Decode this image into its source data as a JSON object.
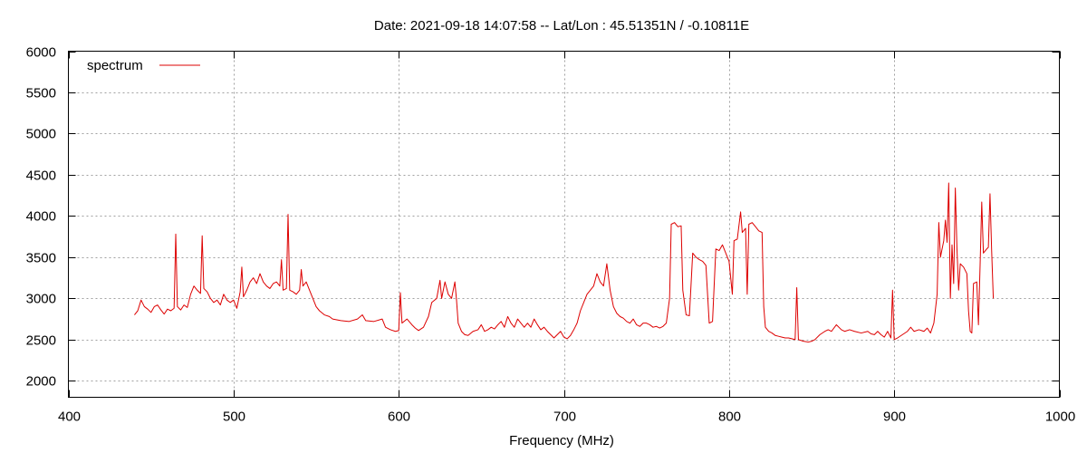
{
  "chart_data": {
    "type": "line",
    "title": "Date: 2021-09-18 14:07:58  --  Lat/Lon : 45.51351N / -0.10811E",
    "xlabel": "Frequency (MHz)",
    "ylabel": "",
    "xlim": [
      400,
      1000
    ],
    "ylim": [
      1800,
      6000
    ],
    "xticks": [
      400,
      500,
      600,
      700,
      800,
      900,
      1000
    ],
    "yticks": [
      2000,
      2500,
      3000,
      3500,
      4000,
      4500,
      5000,
      5500,
      6000
    ],
    "grid": true,
    "legend_position": "top-left",
    "colors": {
      "series": "#dd0000"
    },
    "series": [
      {
        "name": "spectrum",
        "points": [
          [
            440,
            2800
          ],
          [
            442,
            2850
          ],
          [
            444,
            2980
          ],
          [
            446,
            2900
          ],
          [
            448,
            2870
          ],
          [
            450,
            2830
          ],
          [
            452,
            2900
          ],
          [
            454,
            2920
          ],
          [
            456,
            2860
          ],
          [
            458,
            2810
          ],
          [
            460,
            2870
          ],
          [
            462,
            2850
          ],
          [
            464,
            2880
          ],
          [
            465,
            3780
          ],
          [
            466,
            2900
          ],
          [
            468,
            2860
          ],
          [
            470,
            2920
          ],
          [
            472,
            2890
          ],
          [
            474,
            3050
          ],
          [
            476,
            3150
          ],
          [
            478,
            3100
          ],
          [
            480,
            3060
          ],
          [
            481,
            3760
          ],
          [
            482,
            3120
          ],
          [
            484,
            3080
          ],
          [
            486,
            3000
          ],
          [
            488,
            2950
          ],
          [
            490,
            2980
          ],
          [
            492,
            2920
          ],
          [
            494,
            3050
          ],
          [
            496,
            2980
          ],
          [
            498,
            2950
          ],
          [
            500,
            2980
          ],
          [
            502,
            2880
          ],
          [
            504,
            3080
          ],
          [
            505,
            3380
          ],
          [
            506,
            3020
          ],
          [
            508,
            3100
          ],
          [
            510,
            3200
          ],
          [
            512,
            3250
          ],
          [
            514,
            3180
          ],
          [
            516,
            3300
          ],
          [
            518,
            3200
          ],
          [
            520,
            3150
          ],
          [
            522,
            3120
          ],
          [
            524,
            3180
          ],
          [
            526,
            3200
          ],
          [
            528,
            3150
          ],
          [
            529,
            3470
          ],
          [
            530,
            3100
          ],
          [
            532,
            3120
          ],
          [
            533,
            4020
          ],
          [
            534,
            3100
          ],
          [
            536,
            3080
          ],
          [
            538,
            3050
          ],
          [
            540,
            3100
          ],
          [
            541,
            3350
          ],
          [
            542,
            3150
          ],
          [
            544,
            3200
          ],
          [
            546,
            3100
          ],
          [
            548,
            3000
          ],
          [
            550,
            2900
          ],
          [
            552,
            2850
          ],
          [
            555,
            2800
          ],
          [
            558,
            2780
          ],
          [
            560,
            2750
          ],
          [
            565,
            2730
          ],
          [
            570,
            2720
          ],
          [
            575,
            2750
          ],
          [
            578,
            2800
          ],
          [
            580,
            2730
          ],
          [
            585,
            2720
          ],
          [
            590,
            2750
          ],
          [
            592,
            2650
          ],
          [
            595,
            2620
          ],
          [
            598,
            2600
          ],
          [
            600,
            2610
          ],
          [
            601,
            3070
          ],
          [
            602,
            2700
          ],
          [
            605,
            2750
          ],
          [
            608,
            2680
          ],
          [
            610,
            2640
          ],
          [
            612,
            2610
          ],
          [
            615,
            2650
          ],
          [
            618,
            2780
          ],
          [
            620,
            2950
          ],
          [
            623,
            3000
          ],
          [
            625,
            3220
          ],
          [
            626,
            3000
          ],
          [
            628,
            3200
          ],
          [
            630,
            3050
          ],
          [
            632,
            3000
          ],
          [
            634,
            3200
          ],
          [
            635,
            2980
          ],
          [
            636,
            2700
          ],
          [
            638,
            2600
          ],
          [
            640,
            2560
          ],
          [
            642,
            2550
          ],
          [
            645,
            2600
          ],
          [
            648,
            2620
          ],
          [
            650,
            2680
          ],
          [
            652,
            2600
          ],
          [
            654,
            2620
          ],
          [
            656,
            2650
          ],
          [
            658,
            2630
          ],
          [
            660,
            2680
          ],
          [
            662,
            2720
          ],
          [
            664,
            2650
          ],
          [
            666,
            2780
          ],
          [
            668,
            2700
          ],
          [
            670,
            2650
          ],
          [
            672,
            2750
          ],
          [
            674,
            2700
          ],
          [
            676,
            2650
          ],
          [
            678,
            2700
          ],
          [
            680,
            2650
          ],
          [
            682,
            2750
          ],
          [
            684,
            2680
          ],
          [
            686,
            2620
          ],
          [
            688,
            2650
          ],
          [
            690,
            2600
          ],
          [
            692,
            2560
          ],
          [
            694,
            2520
          ],
          [
            696,
            2560
          ],
          [
            698,
            2600
          ],
          [
            700,
            2530
          ],
          [
            702,
            2510
          ],
          [
            704,
            2550
          ],
          [
            706,
            2620
          ],
          [
            708,
            2700
          ],
          [
            710,
            2850
          ],
          [
            712,
            2950
          ],
          [
            714,
            3050
          ],
          [
            716,
            3100
          ],
          [
            718,
            3150
          ],
          [
            720,
            3300
          ],
          [
            722,
            3200
          ],
          [
            724,
            3150
          ],
          [
            726,
            3420
          ],
          [
            728,
            3100
          ],
          [
            730,
            2900
          ],
          [
            732,
            2820
          ],
          [
            734,
            2780
          ],
          [
            736,
            2760
          ],
          [
            738,
            2720
          ],
          [
            740,
            2700
          ],
          [
            742,
            2750
          ],
          [
            744,
            2680
          ],
          [
            746,
            2660
          ],
          [
            748,
            2700
          ],
          [
            750,
            2700
          ],
          [
            752,
            2680
          ],
          [
            754,
            2650
          ],
          [
            756,
            2660
          ],
          [
            758,
            2640
          ],
          [
            760,
            2660
          ],
          [
            762,
            2700
          ],
          [
            764,
            3000
          ],
          [
            765,
            3900
          ],
          [
            767,
            3920
          ],
          [
            769,
            3870
          ],
          [
            771,
            3880
          ],
          [
            772,
            3100
          ],
          [
            774,
            2800
          ],
          [
            776,
            2790
          ],
          [
            778,
            3550
          ],
          [
            780,
            3500
          ],
          [
            782,
            3470
          ],
          [
            784,
            3450
          ],
          [
            786,
            3400
          ],
          [
            788,
            2700
          ],
          [
            790,
            2720
          ],
          [
            792,
            3600
          ],
          [
            794,
            3580
          ],
          [
            796,
            3650
          ],
          [
            798,
            3550
          ],
          [
            800,
            3450
          ],
          [
            802,
            3050
          ],
          [
            803,
            3700
          ],
          [
            805,
            3720
          ],
          [
            807,
            4050
          ],
          [
            808,
            3800
          ],
          [
            810,
            3850
          ],
          [
            811,
            3050
          ],
          [
            812,
            3900
          ],
          [
            814,
            3920
          ],
          [
            816,
            3870
          ],
          [
            818,
            3820
          ],
          [
            820,
            3800
          ],
          [
            821,
            2900
          ],
          [
            822,
            2650
          ],
          [
            824,
            2600
          ],
          [
            826,
            2580
          ],
          [
            828,
            2550
          ],
          [
            830,
            2540
          ],
          [
            832,
            2530
          ],
          [
            834,
            2520
          ],
          [
            836,
            2520
          ],
          [
            838,
            2510
          ],
          [
            840,
            2500
          ],
          [
            841,
            3130
          ],
          [
            842,
            2500
          ],
          [
            845,
            2480
          ],
          [
            848,
            2470
          ],
          [
            850,
            2480
          ],
          [
            852,
            2500
          ],
          [
            855,
            2560
          ],
          [
            858,
            2600
          ],
          [
            860,
            2620
          ],
          [
            862,
            2600
          ],
          [
            865,
            2680
          ],
          [
            868,
            2620
          ],
          [
            870,
            2600
          ],
          [
            873,
            2620
          ],
          [
            876,
            2600
          ],
          [
            880,
            2580
          ],
          [
            884,
            2600
          ],
          [
            886,
            2570
          ],
          [
            888,
            2560
          ],
          [
            890,
            2600
          ],
          [
            892,
            2560
          ],
          [
            894,
            2530
          ],
          [
            896,
            2600
          ],
          [
            898,
            2520
          ],
          [
            899,
            3100
          ],
          [
            900,
            2500
          ],
          [
            902,
            2520
          ],
          [
            905,
            2560
          ],
          [
            908,
            2600
          ],
          [
            910,
            2650
          ],
          [
            912,
            2600
          ],
          [
            915,
            2620
          ],
          [
            918,
            2600
          ],
          [
            920,
            2640
          ],
          [
            922,
            2580
          ],
          [
            924,
            2700
          ],
          [
            926,
            3050
          ],
          [
            927,
            3920
          ],
          [
            928,
            3500
          ],
          [
            930,
            3700
          ],
          [
            931,
            3950
          ],
          [
            932,
            3680
          ],
          [
            933,
            4400
          ],
          [
            934,
            3000
          ],
          [
            935,
            3650
          ],
          [
            936,
            3180
          ],
          [
            937,
            4340
          ],
          [
            938,
            3600
          ],
          [
            939,
            3100
          ],
          [
            940,
            3420
          ],
          [
            942,
            3380
          ],
          [
            944,
            3300
          ],
          [
            945,
            2850
          ],
          [
            946,
            2600
          ],
          [
            947,
            2580
          ],
          [
            948,
            3180
          ],
          [
            950,
            3200
          ],
          [
            951,
            2680
          ],
          [
            952,
            3400
          ],
          [
            953,
            4170
          ],
          [
            954,
            3550
          ],
          [
            956,
            3600
          ],
          [
            957,
            3620
          ],
          [
            958,
            4270
          ],
          [
            959,
            3580
          ],
          [
            960,
            3000
          ]
        ]
      }
    ]
  }
}
